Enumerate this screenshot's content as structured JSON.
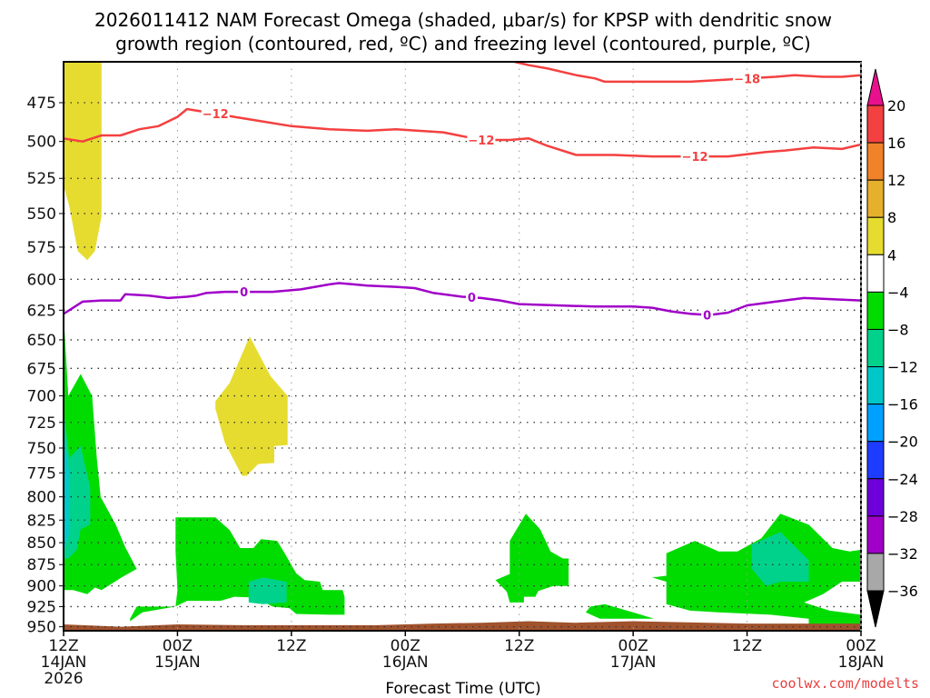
{
  "chart_data": {
    "type": "heatmap",
    "title_line1": "2026011412 NAM Forecast Omega (shaded, μbar/s) for KPSP with dendritic snow",
    "title_line2": "growth region (contoured, red, ºC) and freezing level (contoured, purple, ºC)",
    "xlabel": "Forecast Time (UTC)",
    "ylabel": "",
    "credit": "coolwx.com/modelts",
    "x_range_hours": [
      0,
      84
    ],
    "x_ticks": [
      {
        "hour": 0,
        "line1": "12Z",
        "line2": "14JAN",
        "line3": "2026"
      },
      {
        "hour": 12,
        "line1": "00Z",
        "line2": "15JAN",
        "line3": ""
      },
      {
        "hour": 24,
        "line1": "12Z",
        "line2": "",
        "line3": ""
      },
      {
        "hour": 36,
        "line1": "00Z",
        "line2": "16JAN",
        "line3": ""
      },
      {
        "hour": 48,
        "line1": "12Z",
        "line2": "",
        "line3": ""
      },
      {
        "hour": 60,
        "line1": "00Z",
        "line2": "17JAN",
        "line3": ""
      },
      {
        "hour": 72,
        "line1": "12Z",
        "line2": "",
        "line3": ""
      },
      {
        "hour": 84,
        "line1": "00Z",
        "line2": "18JAN",
        "line3": ""
      }
    ],
    "y_axis": "pressure (hPa), inverted",
    "y_range_hpa": [
      450,
      955
    ],
    "y_ticks": [
      475,
      500,
      525,
      550,
      575,
      600,
      625,
      650,
      675,
      700,
      725,
      750,
      775,
      800,
      825,
      850,
      875,
      900,
      925,
      950
    ],
    "grid": true,
    "colorbar": {
      "position": "right",
      "labels": [
        "20",
        "16",
        "12",
        "8",
        "4",
        "−4",
        "−8",
        "−12",
        "−16",
        "−20",
        "−24",
        "−28",
        "−32",
        "−36"
      ],
      "top_arrow_color": "#e8108c",
      "bottom_arrow_color": "#000000",
      "bins": [
        {
          "range": "16 to 20",
          "color": "#f44040"
        },
        {
          "range": "12 to 16",
          "color": "#f0822a"
        },
        {
          "range": "8 to 12",
          "color": "#e6b02c"
        },
        {
          "range": "4 to 8",
          "color": "#e6dc30"
        },
        {
          "range": "-4 to 4",
          "color": "#ffffff"
        },
        {
          "range": "-8 to -4",
          "color": "#00dc00"
        },
        {
          "range": "-12 to -8",
          "color": "#00d28c"
        },
        {
          "range": "-16 to -12",
          "color": "#00c8c8"
        },
        {
          "range": "-20 to -16",
          "color": "#00a0ff"
        },
        {
          "range": "-24 to -20",
          "color": "#1e3cff"
        },
        {
          "range": "-28 to -24",
          "color": "#6e00dc"
        },
        {
          "range": "-32 to -28",
          "color": "#a000c8"
        },
        {
          "range": "-36 to -32",
          "color": "#a8a8a8"
        }
      ]
    },
    "shaded_regions": [
      {
        "name": "yellow-ascent-top-left",
        "color": "#e6dc30",
        "points": [
          [
            0,
            450
          ],
          [
            4,
            450
          ],
          [
            4,
            552
          ],
          [
            3.3,
            578
          ],
          [
            2.5,
            585
          ],
          [
            1.5,
            578
          ],
          [
            0.6,
            545
          ],
          [
            0,
            530
          ]
        ]
      },
      {
        "name": "yellow-ascent-mid",
        "color": "#e6dc30",
        "points": [
          [
            16.0,
            705
          ],
          [
            17.5,
            688
          ],
          [
            19.6,
            647
          ],
          [
            21.8,
            682
          ],
          [
            23.6,
            700
          ],
          [
            23.6,
            747
          ],
          [
            22.2,
            748
          ],
          [
            22.2,
            765
          ],
          [
            20.5,
            766
          ],
          [
            19.3,
            778
          ],
          [
            18.8,
            778
          ],
          [
            17.0,
            745
          ],
          [
            16.0,
            712
          ]
        ]
      },
      {
        "name": "green-descent-left",
        "color": "#00dc00",
        "points": [
          [
            0,
            628
          ],
          [
            0.5,
            700
          ],
          [
            1.8,
            680
          ],
          [
            3.0,
            700
          ],
          [
            3.5,
            760
          ],
          [
            3.9,
            800
          ],
          [
            5.5,
            830
          ],
          [
            6.5,
            855
          ],
          [
            7.7,
            880
          ],
          [
            6.1,
            890
          ],
          [
            4.0,
            905
          ],
          [
            3.3,
            902
          ],
          [
            2.5,
            910
          ],
          [
            1.0,
            905
          ],
          [
            0,
            905
          ]
        ]
      },
      {
        "name": "teal-left",
        "color": "#00d28c",
        "points": [
          [
            0,
            712
          ],
          [
            0.6,
            760
          ],
          [
            1.8,
            748
          ],
          [
            2.8,
            790
          ],
          [
            2.8,
            830
          ],
          [
            1.8,
            835
          ],
          [
            1.4,
            858
          ],
          [
            0.5,
            868
          ],
          [
            0,
            868
          ]
        ]
      },
      {
        "name": "cyan-left",
        "color": "#00c8c8",
        "points": [
          [
            0,
            735
          ],
          [
            0.6,
            775
          ],
          [
            0.6,
            840
          ],
          [
            0,
            860
          ]
        ]
      },
      {
        "name": "green-15jan",
        "color": "#00dc00",
        "points": [
          [
            11.8,
            822
          ],
          [
            16.0,
            822
          ],
          [
            17.5,
            836
          ],
          [
            18.6,
            856
          ],
          [
            20.0,
            856
          ],
          [
            20.8,
            846
          ],
          [
            22.5,
            848
          ],
          [
            23.3,
            862
          ],
          [
            24.5,
            885
          ],
          [
            25.4,
            893
          ],
          [
            27.0,
            895
          ],
          [
            27.3,
            905
          ],
          [
            29.4,
            905
          ],
          [
            29.6,
            913
          ],
          [
            29.6,
            935
          ],
          [
            28.0,
            935
          ],
          [
            24.5,
            934
          ],
          [
            23.8,
            927
          ],
          [
            22.0,
            925
          ],
          [
            20.3,
            914
          ],
          [
            18.0,
            913
          ],
          [
            16.5,
            918
          ],
          [
            13.0,
            918
          ],
          [
            11.8,
            925
          ],
          [
            8.3,
            932
          ],
          [
            7.0,
            943
          ],
          [
            7.0,
            940
          ],
          [
            7.7,
            925
          ],
          [
            11.8,
            925
          ],
          [
            12.0,
            905
          ],
          [
            11.8,
            860
          ]
        ]
      },
      {
        "name": "teal-15jan",
        "color": "#00d28c",
        "points": [
          [
            19.5,
            895
          ],
          [
            21.0,
            890
          ],
          [
            23.5,
            895
          ],
          [
            23.5,
            920
          ],
          [
            21.0,
            922
          ],
          [
            19.5,
            920
          ]
        ]
      },
      {
        "name": "green-16jan-12z",
        "color": "#00dc00",
        "points": [
          [
            47.0,
            848
          ],
          [
            48.7,
            818
          ],
          [
            50.2,
            835
          ],
          [
            51.3,
            860
          ],
          [
            52.6,
            868
          ],
          [
            53.2,
            868
          ],
          [
            53.2,
            900
          ],
          [
            51.6,
            900
          ],
          [
            50.0,
            906
          ],
          [
            49.7,
            913
          ],
          [
            48.5,
            913
          ],
          [
            48.5,
            920
          ],
          [
            47.0,
            920
          ],
          [
            46.7,
            907
          ],
          [
            45.5,
            893
          ],
          [
            47.0,
            886
          ]
        ]
      },
      {
        "name": "green-16jan-small",
        "color": "#00dc00",
        "points": [
          [
            55.5,
            925
          ],
          [
            57.0,
            922
          ],
          [
            60.0,
            932
          ],
          [
            62.2,
            940
          ],
          [
            56.5,
            940
          ],
          [
            55.0,
            932
          ]
        ]
      },
      {
        "name": "green-17jan",
        "color": "#00dc00",
        "points": [
          [
            63.5,
            862
          ],
          [
            66.5,
            848
          ],
          [
            69.0,
            860
          ],
          [
            71.0,
            860
          ],
          [
            73.5,
            845
          ],
          [
            75.5,
            818
          ],
          [
            78.5,
            830
          ],
          [
            81.0,
            856
          ],
          [
            82.8,
            860
          ],
          [
            84,
            858
          ],
          [
            84,
            895
          ],
          [
            82.0,
            895
          ],
          [
            80.0,
            910
          ],
          [
            78.0,
            920
          ],
          [
            80.7,
            930
          ],
          [
            84,
            935
          ],
          [
            84,
            947
          ],
          [
            78.5,
            947
          ],
          [
            78.5,
            940
          ],
          [
            74.5,
            935
          ],
          [
            69.0,
            932
          ],
          [
            66.0,
            930
          ],
          [
            63.5,
            922
          ],
          [
            63.5,
            895
          ],
          [
            62.0,
            890
          ],
          [
            63.5,
            888
          ]
        ]
      },
      {
        "name": "teal-17jan",
        "color": "#00d28c",
        "points": [
          [
            72.5,
            852
          ],
          [
            75.5,
            838
          ],
          [
            78.5,
            870
          ],
          [
            78.5,
            895
          ],
          [
            75.5,
            895
          ],
          [
            74.0,
            900
          ],
          [
            72.5,
            880
          ]
        ]
      }
    ],
    "surface_fill": {
      "color": "#a0522d",
      "top_pressure_hpa": [
        [
          0,
          947
        ],
        [
          6,
          950
        ],
        [
          12,
          947
        ],
        [
          19,
          948
        ],
        [
          33,
          948
        ],
        [
          39,
          946
        ],
        [
          44,
          945
        ],
        [
          49,
          943
        ],
        [
          54,
          945
        ],
        [
          60,
          943
        ],
        [
          72,
          946
        ],
        [
          84,
          946
        ]
      ]
    },
    "contours": [
      {
        "name": "dsgz-minus12",
        "color": "#f44040",
        "label": "-12",
        "label_hours": [
          16.0,
          44.0,
          66.5
        ],
        "points": [
          [
            0,
            498
          ],
          [
            2,
            500
          ],
          [
            4,
            496
          ],
          [
            6,
            496
          ],
          [
            8,
            492
          ],
          [
            10,
            490
          ],
          [
            12,
            484
          ],
          [
            13,
            479
          ],
          [
            15,
            481
          ],
          [
            17,
            483
          ],
          [
            20,
            486
          ],
          [
            24,
            490
          ],
          [
            28,
            492
          ],
          [
            32,
            493
          ],
          [
            35,
            492
          ],
          [
            40,
            494
          ],
          [
            44,
            499
          ],
          [
            47,
            499
          ],
          [
            49,
            498
          ],
          [
            51,
            503
          ],
          [
            54,
            509
          ],
          [
            58,
            509
          ],
          [
            62,
            510
          ],
          [
            66,
            510
          ],
          [
            70,
            510
          ],
          [
            74,
            507
          ],
          [
            76,
            506
          ],
          [
            79,
            504
          ],
          [
            82,
            505
          ],
          [
            84,
            502
          ]
        ]
      },
      {
        "name": "dsgz-minus18",
        "color": "#f44040",
        "label": "-18",
        "label_hours": [
          72.0
        ],
        "points": [
          [
            47.5,
            450
          ],
          [
            49,
            452
          ],
          [
            51,
            454
          ],
          [
            54,
            458
          ],
          [
            56,
            460
          ],
          [
            57,
            462
          ],
          [
            62,
            462
          ],
          [
            66,
            462
          ],
          [
            69,
            461
          ],
          [
            72,
            460
          ],
          [
            75,
            459
          ],
          [
            77,
            458
          ],
          [
            80,
            459
          ],
          [
            82,
            459
          ],
          [
            84,
            458
          ]
        ]
      },
      {
        "name": "freezing-level",
        "color": "#a000c8",
        "label": "0",
        "label_hours": [
          19.0,
          43.0,
          67.8
        ],
        "points": [
          [
            0,
            628
          ],
          [
            2,
            618
          ],
          [
            4,
            617
          ],
          [
            6,
            617
          ],
          [
            6.5,
            612
          ],
          [
            9,
            613
          ],
          [
            11,
            615
          ],
          [
            13,
            614
          ],
          [
            14,
            613
          ],
          [
            15,
            611
          ],
          [
            17,
            610
          ],
          [
            19,
            610
          ],
          [
            22,
            610
          ],
          [
            25,
            608
          ],
          [
            28,
            604
          ],
          [
            29,
            603
          ],
          [
            32,
            605
          ],
          [
            35,
            606
          ],
          [
            37,
            607
          ],
          [
            39,
            611
          ],
          [
            42,
            614
          ],
          [
            44,
            615
          ],
          [
            46,
            617
          ],
          [
            48,
            620
          ],
          [
            52,
            621
          ],
          [
            56,
            622
          ],
          [
            60,
            622
          ],
          [
            62,
            623
          ],
          [
            64,
            626
          ],
          [
            66,
            628
          ],
          [
            68,
            629
          ],
          [
            70,
            627
          ],
          [
            72,
            621
          ],
          [
            75,
            618
          ],
          [
            78,
            615
          ],
          [
            81,
            616
          ],
          [
            84,
            617
          ]
        ]
      }
    ]
  }
}
